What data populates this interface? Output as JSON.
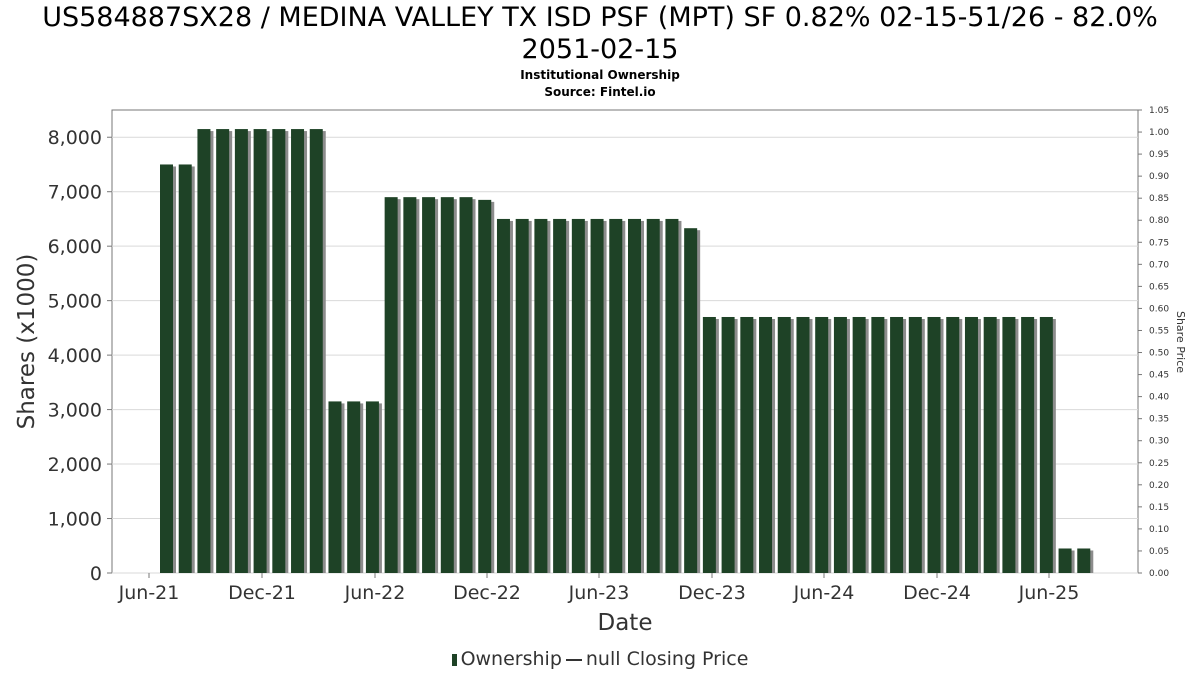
{
  "title_line1": "US584887SX28 / MEDINA VALLEY TX ISD PSF (MPT) SF 0.82% 02-15-51/26 - 82.0%",
  "title_line2": "2051-02-15",
  "subtitle": "Institutional Ownership",
  "source": "Source: Fintel.io",
  "legend": {
    "ownership": "Ownership",
    "price": "null Closing Price"
  },
  "colors": {
    "bar": "#1e4226",
    "bar_shadow": "#8c8c8c",
    "grid": "#d9d9d9",
    "axis": "#777777"
  },
  "chart_data": {
    "type": "bar",
    "xlabel": "Date",
    "ylabel": "Shares (x1000)",
    "y2label": "Share Price",
    "ylim": [
      0,
      8500
    ],
    "y2lim": [
      0,
      1.05
    ],
    "yticks": [
      0,
      1000,
      2000,
      3000,
      4000,
      5000,
      6000,
      7000,
      8000
    ],
    "ytick_labels": [
      "0",
      "1,000",
      "2,000",
      "3,000",
      "4,000",
      "5,000",
      "6,000",
      "7,000",
      "8,000"
    ],
    "y2tick_labels": [
      "0.00",
      "0.05",
      "0.10",
      "0.15",
      "0.20",
      "0.25",
      "0.30",
      "0.35",
      "0.40",
      "0.45",
      "0.50",
      "0.55",
      "0.60",
      "0.65",
      "0.70",
      "0.75",
      "0.80",
      "0.85",
      "0.90",
      "0.95",
      "1.00",
      "1.05"
    ],
    "xtick_labels": [
      "Jun-21",
      "Dec-21",
      "Jun-22",
      "Dec-22",
      "Jun-23",
      "Dec-23",
      "Jun-24",
      "Dec-24",
      "Jun-25"
    ],
    "grid": true,
    "legend_position": "bottom",
    "values": [
      7500,
      7500,
      8150,
      8150,
      8150,
      8150,
      8150,
      8150,
      8150,
      3150,
      3150,
      3150,
      6900,
      6900,
      6900,
      6900,
      6900,
      6850,
      6500,
      6500,
      6500,
      6500,
      6500,
      6500,
      6500,
      6500,
      6500,
      6500,
      6330,
      4700,
      4700,
      4700,
      4700,
      4700,
      4700,
      4700,
      4700,
      4700,
      4700,
      4700,
      4700,
      4700,
      4700,
      4700,
      4700,
      4700,
      4700,
      4700,
      450,
      450
    ]
  }
}
